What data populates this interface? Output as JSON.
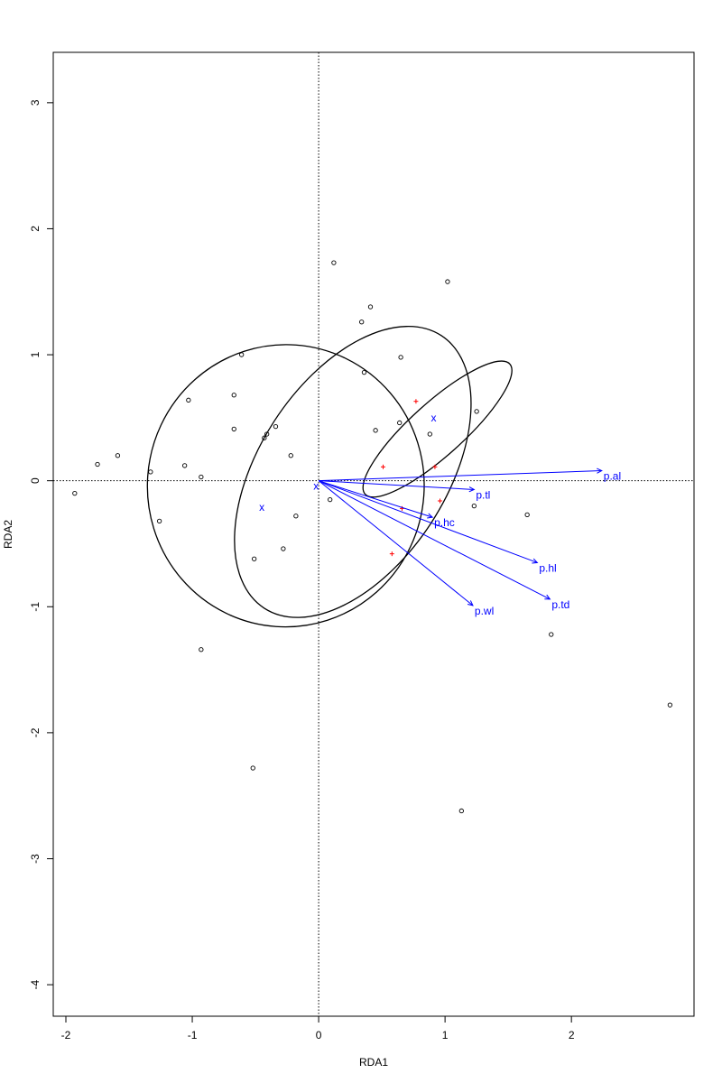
{
  "chart_data": {
    "type": "scatter",
    "title": "",
    "xlabel": "RDA1",
    "ylabel": "RDA2",
    "xlim": [
      -2.1,
      2.97
    ],
    "ylim": [
      -4.25,
      3.4
    ],
    "xticks": [
      -2,
      -1,
      0,
      1,
      2
    ],
    "yticks": [
      -4,
      -3,
      -2,
      -1,
      0,
      1,
      2,
      3
    ],
    "reference_lines": {
      "x": 0,
      "y": 0,
      "style": "dotted"
    },
    "colors": {
      "points": "#000000",
      "centroids": "#ff0000",
      "arrows": "#0000ff",
      "ellipses": "#000000"
    },
    "site_points": [
      {
        "x": 0.12,
        "y": 1.73
      },
      {
        "x": 1.02,
        "y": 1.58
      },
      {
        "x": 0.41,
        "y": 1.38
      },
      {
        "x": 0.34,
        "y": 1.26
      },
      {
        "x": 0.65,
        "y": 0.98
      },
      {
        "x": -0.61,
        "y": 1.0
      },
      {
        "x": 0.36,
        "y": 0.86
      },
      {
        "x": -0.67,
        "y": 0.68
      },
      {
        "x": -1.03,
        "y": 0.64
      },
      {
        "x": 1.25,
        "y": 0.55
      },
      {
        "x": 0.64,
        "y": 0.46
      },
      {
        "x": -0.34,
        "y": 0.43
      },
      {
        "x": -0.67,
        "y": 0.41
      },
      {
        "x": 0.45,
        "y": 0.4
      },
      {
        "x": 0.88,
        "y": 0.37
      },
      {
        "x": -0.41,
        "y": 0.37
      },
      {
        "x": -0.43,
        "y": 0.34
      },
      {
        "x": -1.59,
        "y": 0.2
      },
      {
        "x": -0.22,
        "y": 0.2
      },
      {
        "x": -1.75,
        "y": 0.13
      },
      {
        "x": -1.06,
        "y": 0.12
      },
      {
        "x": -1.33,
        "y": 0.07
      },
      {
        "x": -0.93,
        "y": 0.03
      },
      {
        "x": -1.93,
        "y": -0.1
      },
      {
        "x": 0.09,
        "y": -0.15
      },
      {
        "x": 1.23,
        "y": -0.2
      },
      {
        "x": -0.18,
        "y": -0.28
      },
      {
        "x": 1.65,
        "y": -0.27
      },
      {
        "x": -1.26,
        "y": -0.32
      },
      {
        "x": -0.28,
        "y": -0.54
      },
      {
        "x": -0.51,
        "y": -0.62
      },
      {
        "x": 1.84,
        "y": -1.22
      },
      {
        "x": -0.93,
        "y": -1.34
      },
      {
        "x": 2.78,
        "y": -1.78
      },
      {
        "x": -0.52,
        "y": -2.28
      },
      {
        "x": 1.13,
        "y": -2.62
      }
    ],
    "centroid_points": [
      {
        "x": 0.77,
        "y": 0.63
      },
      {
        "x": 0.51,
        "y": 0.11
      },
      {
        "x": 0.92,
        "y": 0.11
      },
      {
        "x": 0.96,
        "y": -0.16
      },
      {
        "x": 0.66,
        "y": -0.22
      },
      {
        "x": 0.58,
        "y": -0.58
      }
    ],
    "group_centers": [
      {
        "x": -0.02,
        "y": -0.04,
        "label": "x"
      },
      {
        "x": -0.45,
        "y": -0.21,
        "label": "x"
      },
      {
        "x": 0.91,
        "y": 0.5,
        "label": "x"
      }
    ],
    "ellipses": [
      {
        "cx": -0.26,
        "cy": -0.04,
        "rx": 1.095,
        "ry": 1.12,
        "angle_deg": 4
      },
      {
        "cx": 0.27,
        "cy": 0.07,
        "rx": 0.74,
        "ry": 1.29,
        "angle_deg": 33
      },
      {
        "cx": 0.94,
        "cy": 0.41,
        "rx": 0.77,
        "ry": 0.21,
        "angle_deg": -42
      }
    ],
    "arrows": [
      {
        "label": "p.al",
        "x": 2.24,
        "y": 0.08
      },
      {
        "label": "p.tl",
        "x": 1.23,
        "y": -0.07
      },
      {
        "label": "p.hc",
        "x": 0.9,
        "y": -0.29
      },
      {
        "label": "p.hl",
        "x": 1.73,
        "y": -0.65
      },
      {
        "label": "p.td",
        "x": 1.83,
        "y": -0.94
      },
      {
        "label": "p.wl",
        "x": 1.22,
        "y": -0.99
      }
    ]
  }
}
